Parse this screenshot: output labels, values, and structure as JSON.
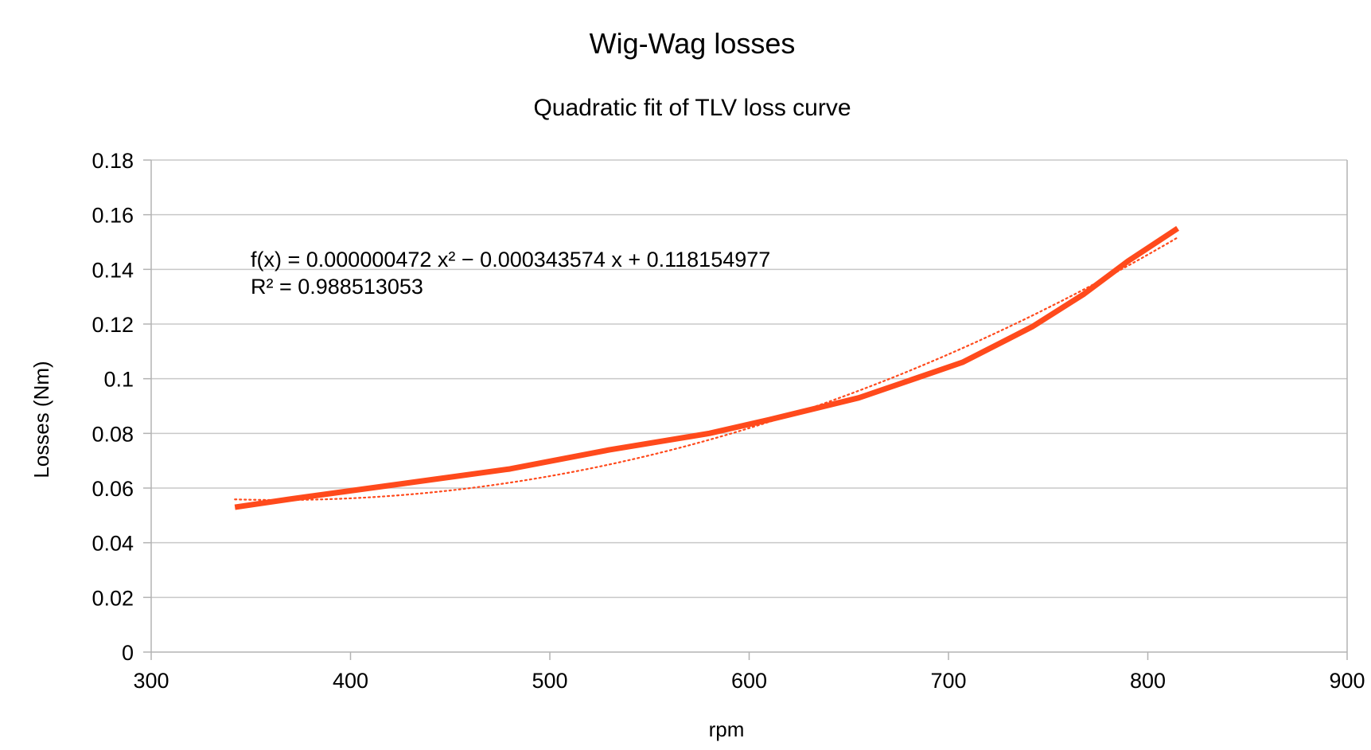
{
  "chart_data": {
    "type": "line",
    "title": "Wig-Wag losses",
    "subtitle": "Quadratic fit of TLV loss curve",
    "xlabel": "rpm",
    "ylabel": "Losses (Nm)",
    "xlim": [
      300,
      900
    ],
    "ylim": [
      0,
      0.18
    ],
    "x_ticks": [
      300,
      400,
      500,
      600,
      700,
      800,
      900
    ],
    "y_ticks": [
      0,
      0.02,
      0.04,
      0.06,
      0.08,
      0.1,
      0.12,
      0.14,
      0.16,
      0.18
    ],
    "x_tick_labels": [
      "300",
      "400",
      "500",
      "600",
      "700",
      "800",
      "900"
    ],
    "y_tick_labels": [
      "0",
      "0.02",
      "0.04",
      "0.06",
      "0.08",
      "0.1",
      "0.12",
      "0.14",
      "0.16",
      "0.18"
    ],
    "grid": true,
    "legend": "none",
    "series": [
      {
        "color": "#ff4a1c",
        "x": [
          342,
          370,
          410,
          480,
          530,
          580,
          610,
          655,
          707,
          742,
          768,
          790,
          815
        ],
        "y": [
          0.053,
          0.056,
          0.06,
          0.067,
          0.074,
          0.08,
          0.085,
          0.093,
          0.106,
          0.119,
          0.131,
          0.143,
          0.155
        ]
      }
    ],
    "trendline": {
      "type": "quadratic",
      "style": "dotted",
      "color": "#ff4a1c",
      "coefficients": {
        "a": 4.72e-07,
        "b": -0.000343574,
        "c": 0.118154977
      },
      "x_range": [
        342,
        815
      ],
      "equation_text": "f(x) = 0.000000472 x² − 0.000343574 x + 0.118154977",
      "r2_text": "R² = 0.988513053"
    }
  }
}
